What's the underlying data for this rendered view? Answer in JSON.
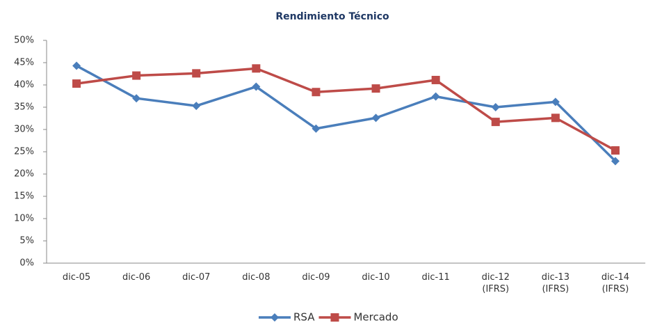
{
  "chart_data": {
    "type": "line",
    "title": "Rendimiento Técnico",
    "categories": [
      "dic-05",
      "dic-06",
      "dic-07",
      "dic-08",
      "dic-09",
      "dic-10",
      "dic-11",
      "dic-12 (IFRS)",
      "dic-13 (IFRS)",
      "dic-14 (IFRS)"
    ],
    "series": [
      {
        "name": "RSA",
        "color": "#4a7ebb",
        "marker": "diamond",
        "values": [
          44.3,
          37.0,
          35.3,
          39.6,
          30.2,
          32.6,
          37.4,
          35.0,
          36.2,
          22.9
        ]
      },
      {
        "name": "Mercado",
        "color": "#be4b48",
        "marker": "square",
        "values": [
          40.3,
          42.1,
          42.6,
          43.7,
          38.4,
          39.2,
          41.1,
          31.7,
          32.6,
          25.3
        ]
      }
    ],
    "ylim": [
      0,
      50
    ],
    "yticks": [
      {
        "value": 0,
        "label": "0%"
      },
      {
        "value": 5,
        "label": "5%"
      },
      {
        "value": 10,
        "label": "10%"
      },
      {
        "value": 15,
        "label": "15%"
      },
      {
        "value": 20,
        "label": "20%"
      },
      {
        "value": 25,
        "label": "25%"
      },
      {
        "value": 30,
        "label": "30%"
      },
      {
        "value": 35,
        "label": "35%"
      },
      {
        "value": 40,
        "label": "40%"
      },
      {
        "value": 45,
        "label": "45%"
      },
      {
        "value": 50,
        "label": "50%"
      }
    ],
    "grid": false,
    "legend": "bottom"
  }
}
